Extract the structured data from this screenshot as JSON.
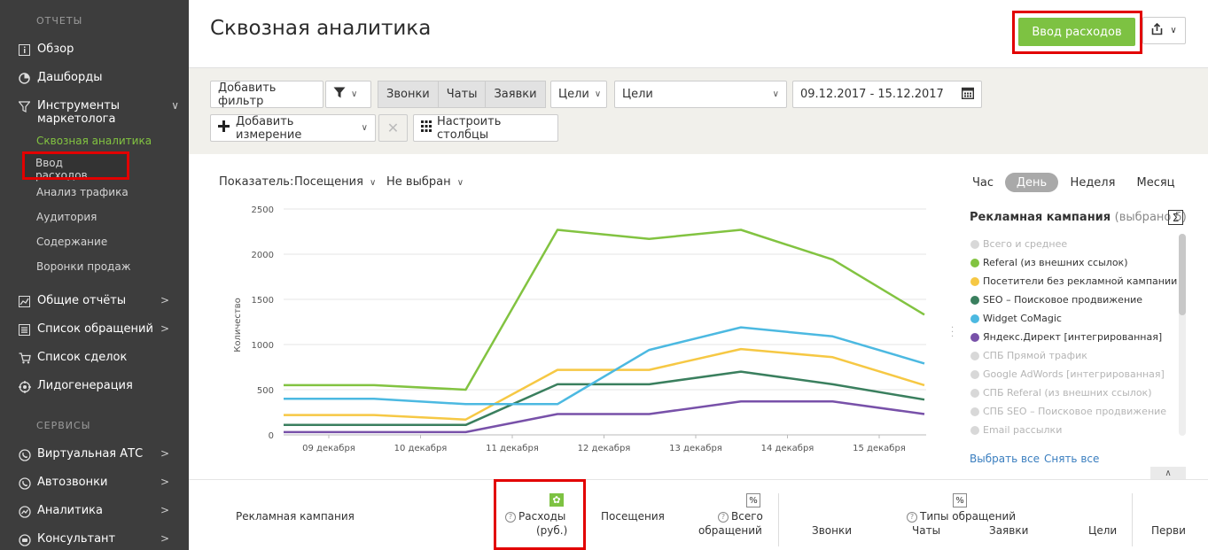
{
  "sidebar": {
    "section_reports": "ОТЧЕТЫ",
    "items": [
      {
        "label": "Обзор"
      },
      {
        "label": "Дашборды"
      },
      {
        "label": "Инструменты маркетолога"
      },
      {
        "label": "Общие отчёты"
      },
      {
        "label": "Список обращений"
      },
      {
        "label": "Список сделок"
      },
      {
        "label": "Лидогенерация"
      }
    ],
    "marketing_sub": [
      {
        "label": "Сквозная аналитика"
      },
      {
        "label": "Ввод расходов"
      },
      {
        "label": "Анализ трафика"
      },
      {
        "label": "Аудитория"
      },
      {
        "label": "Содержание"
      },
      {
        "label": "Воронки продаж"
      }
    ],
    "section_services": "СЕРВИСЫ",
    "services": [
      {
        "label": "Виртуальная АТС"
      },
      {
        "label": "Автозвонки"
      },
      {
        "label": "Аналитика"
      },
      {
        "label": "Консультант"
      }
    ]
  },
  "header": {
    "title": "Сквозная аналитика",
    "expense_button": "Ввод расходов"
  },
  "filters": {
    "add_filter": "Добавить фильтр",
    "types": [
      "Звонки",
      "Чаты",
      "Заявки"
    ],
    "goals_dropdown": "Цели",
    "goals_select": "Цели",
    "date_range": "09.12.2017 - 15.12.2017",
    "add_dimension": "Добавить измерение",
    "configure_columns": "Настроить столбцы"
  },
  "chart_controls": {
    "metric_label": "Показатель:",
    "metric_value": "Посещения",
    "second_metric": "Не выбран",
    "periods": [
      "Час",
      "День",
      "Неделя",
      "Месяц"
    ],
    "active_period": "День"
  },
  "legend": {
    "title": "Рекламная кампания",
    "selected": "(выбрано 5)",
    "sigma": "Σ",
    "items": [
      {
        "label": "Всего и среднее",
        "color": "#d8d8d8",
        "active": false
      },
      {
        "label": "Referal (из внешних ссылок)",
        "color": "#82c341",
        "active": true
      },
      {
        "label": "Посетители без рекламной кампании",
        "color": "#f6c844",
        "active": true
      },
      {
        "label": "SEO – Поисковое продвижение",
        "color": "#3a7f5e",
        "active": true
      },
      {
        "label": "Widget CoMagic",
        "color": "#4cb9e1",
        "active": true
      },
      {
        "label": "Яндекс.Директ [интегрированная]",
        "color": "#7851a9",
        "active": true
      },
      {
        "label": "СПБ Прямой трафик",
        "color": "#d8d8d8",
        "active": false
      },
      {
        "label": "Google AdWords [интегрированная]",
        "color": "#d8d8d8",
        "active": false
      },
      {
        "label": "СПБ Referal (из внешних ссылок)",
        "color": "#d8d8d8",
        "active": false
      },
      {
        "label": "СПБ SEO – Поисковое продвижение",
        "color": "#d8d8d8",
        "active": false
      },
      {
        "label": "Email рассылки",
        "color": "#d8d8d8",
        "active": false
      }
    ],
    "select_all": "Выбрать все",
    "deselect_all": "Снять все"
  },
  "chart_data": {
    "type": "line",
    "ylabel": "Количество",
    "xlabel": "",
    "ylim": [
      0,
      2500
    ],
    "yticks": [
      "2500",
      "2000",
      "1500",
      "1000",
      "500",
      "0"
    ],
    "categories": [
      "09 декабря",
      "10 декабря",
      "11 декабря",
      "12 декабря",
      "13 декабря",
      "14 декабря",
      "15 декабря"
    ],
    "series": [
      {
        "name": "Referal (из внешних ссылок)",
        "color": "#82c341",
        "values": [
          550,
          500,
          2270,
          2170,
          2270,
          1940,
          1330
        ]
      },
      {
        "name": "Посетители без рекламной кампании",
        "color": "#f6c844",
        "values": [
          220,
          170,
          720,
          720,
          950,
          860,
          550
        ]
      },
      {
        "name": "SEO – Поисковое продвижение",
        "color": "#3a7f5e",
        "values": [
          110,
          110,
          560,
          560,
          700,
          560,
          390
        ]
      },
      {
        "name": "Widget CoMagic",
        "color": "#4cb9e1",
        "values": [
          400,
          340,
          340,
          940,
          1190,
          1090,
          790
        ]
      },
      {
        "name": "Яндекс.Директ [интегрированная]",
        "color": "#7851a9",
        "values": [
          30,
          30,
          230,
          230,
          370,
          370,
          230
        ]
      }
    ]
  },
  "table": {
    "campaign_col": "Рекламная кампания",
    "expenses_col": "Расходы (руб.)",
    "expenses_line1": "Расходы",
    "expenses_line2": "(руб.)",
    "visits_col": "Посещения",
    "total_line1": "Всего",
    "total_line2": "обращений",
    "types_col": "Типы обращений",
    "calls": "Звонки",
    "chats": "Чаты",
    "requests": "Заявки",
    "goals": "Цели",
    "first": "Перви",
    "pct": "%"
  }
}
